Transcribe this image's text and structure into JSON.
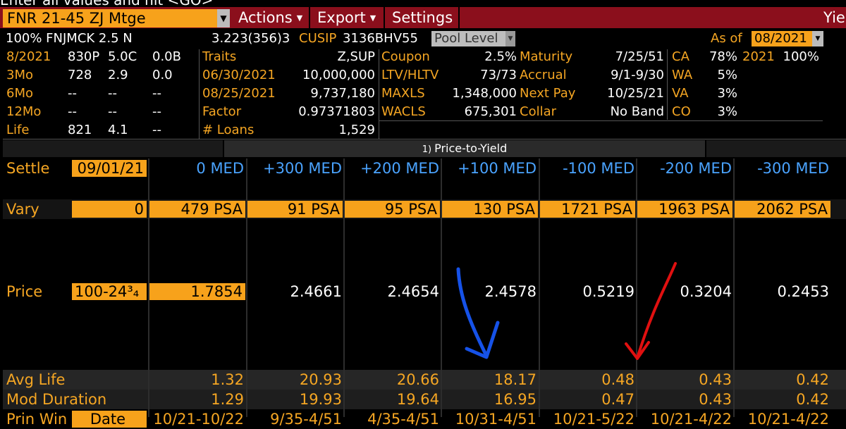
{
  "command_line": "Enter all values and hit <GO>",
  "toolbar": {
    "security": "FNR 21-45 ZJ Mtge",
    "actions": "Actions",
    "export": "Export",
    "settings": "Settings",
    "right_tab": "Yie"
  },
  "info": {
    "pool_name": "100% FNJMCK 2.5 N",
    "factor_code": "3.223(356)3",
    "cusip_label": "CUSIP",
    "cusip": "3136BHV55",
    "pool_level": "Pool Level",
    "as_of_label": "As of",
    "as_of": "08/2021"
  },
  "history": [
    {
      "period": "8/2021",
      "psa": "830P",
      "c1": "5.0C",
      "c2": "0.0B"
    },
    {
      "period": "3Mo",
      "psa": "728",
      "c1": "2.9",
      "c2": "0.0"
    },
    {
      "period": "6Mo",
      "psa": "--",
      "c1": "--",
      "c2": "--"
    },
    {
      "period": "12Mo",
      "psa": "--",
      "c1": "--",
      "c2": "--"
    },
    {
      "period": "Life",
      "psa": "821",
      "c1": "4.1",
      "c2": "--"
    }
  ],
  "traits": [
    {
      "label": "Traits",
      "value": "Z,SUP"
    },
    {
      "label": "06/30/2021",
      "value": "10,000,000"
    },
    {
      "label": "08/25/2021",
      "value": "9,737,180"
    },
    {
      "label": "Factor",
      "value": "0.97371803"
    },
    {
      "label": "# Loans",
      "value": "1,529"
    }
  ],
  "terms": [
    {
      "label": "Coupon",
      "value": "2.5%"
    },
    {
      "label": "LTV/HLTV",
      "value": "73/73"
    },
    {
      "label": "MAXLS",
      "value": "1,348,000"
    },
    {
      "label": "WACLS",
      "value": "675,301"
    }
  ],
  "dates": [
    {
      "label": "Maturity",
      "value": "7/25/51"
    },
    {
      "label": "Accrual",
      "value": "9/1-9/30"
    },
    {
      "label": "Next Pay",
      "value": "10/25/21"
    },
    {
      "label": "Collar",
      "value": "No Band"
    }
  ],
  "geo": [
    {
      "label": "CA",
      "value": "78%",
      "extra_label": "2021",
      "extra_value": "100%"
    },
    {
      "label": "WA",
      "value": "5%"
    },
    {
      "label": "VA",
      "value": "3%"
    },
    {
      "label": "CO",
      "value": "3%"
    }
  ],
  "pty_title": "Price-to-Yield",
  "pty_icon": "1)",
  "table": {
    "settle_label": "Settle",
    "settle_value": "09/01/21",
    "columns": [
      "0 MED",
      "+300 MED",
      "+200 MED",
      "+100 MED",
      "-100 MED",
      "-200 MED",
      "-300 MED"
    ],
    "vary_label": "Vary",
    "vary_value": "0",
    "vary": [
      "479 PSA",
      "91 PSA",
      "95 PSA",
      "130 PSA",
      "1721 PSA",
      "1963 PSA",
      "2062 PSA"
    ],
    "price_label": "Price",
    "price_input": "100-24³₄",
    "prices": [
      "1.7854",
      "2.4661",
      "2.4654",
      "2.4578",
      "0.5219",
      "0.3204",
      "0.2453"
    ],
    "avg_life_label": "Avg Life",
    "avg_life": [
      "1.32",
      "20.93",
      "20.66",
      "18.17",
      "0.48",
      "0.43",
      "0.42"
    ],
    "mod_dur_label": "Mod Duration",
    "mod_dur": [
      "1.29",
      "19.93",
      "19.64",
      "16.95",
      "0.47",
      "0.43",
      "0.42"
    ],
    "window_label": "Prin Win",
    "window_input": "Date",
    "window": [
      "10/21-10/22",
      "9/35-4/51",
      "4/35-4/51",
      "10/31-4/51",
      "10/21-5/22",
      "10/21-4/22",
      "10/21-4/22"
    ]
  },
  "annotations": {
    "blue_color": "#1652e8",
    "red_color": "#e01010"
  }
}
